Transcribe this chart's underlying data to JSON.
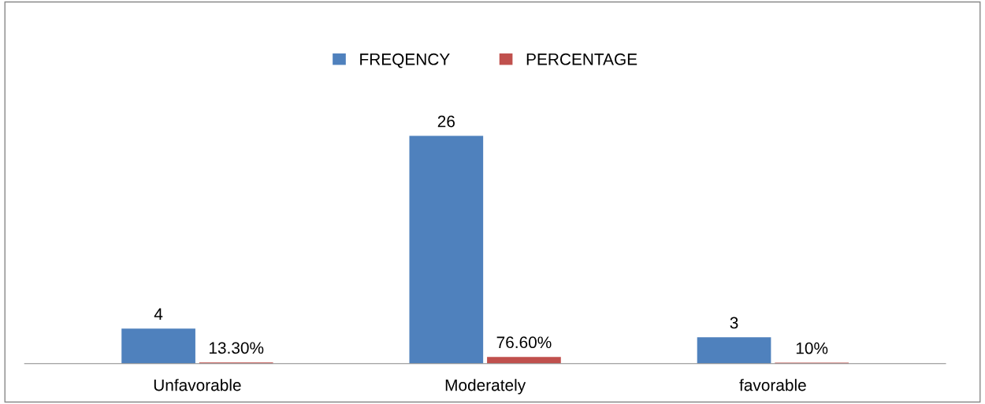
{
  "chart_data": {
    "type": "bar",
    "categories": [
      "Unfavorable",
      "Moderately",
      "favorable"
    ],
    "series": [
      {
        "name": "FREQENCY",
        "color": "#4f81bd",
        "values": [
          4,
          26,
          3
        ]
      },
      {
        "name": "PERCENTAGE",
        "color": "#c0504d",
        "values": [
          0.133,
          0.766,
          0.1
        ],
        "value_labels": [
          "13.30%",
          "76.60%",
          "10%"
        ]
      }
    ],
    "data_labels": true,
    "legend": "top",
    "grid": false,
    "tick_labels": "x"
  }
}
